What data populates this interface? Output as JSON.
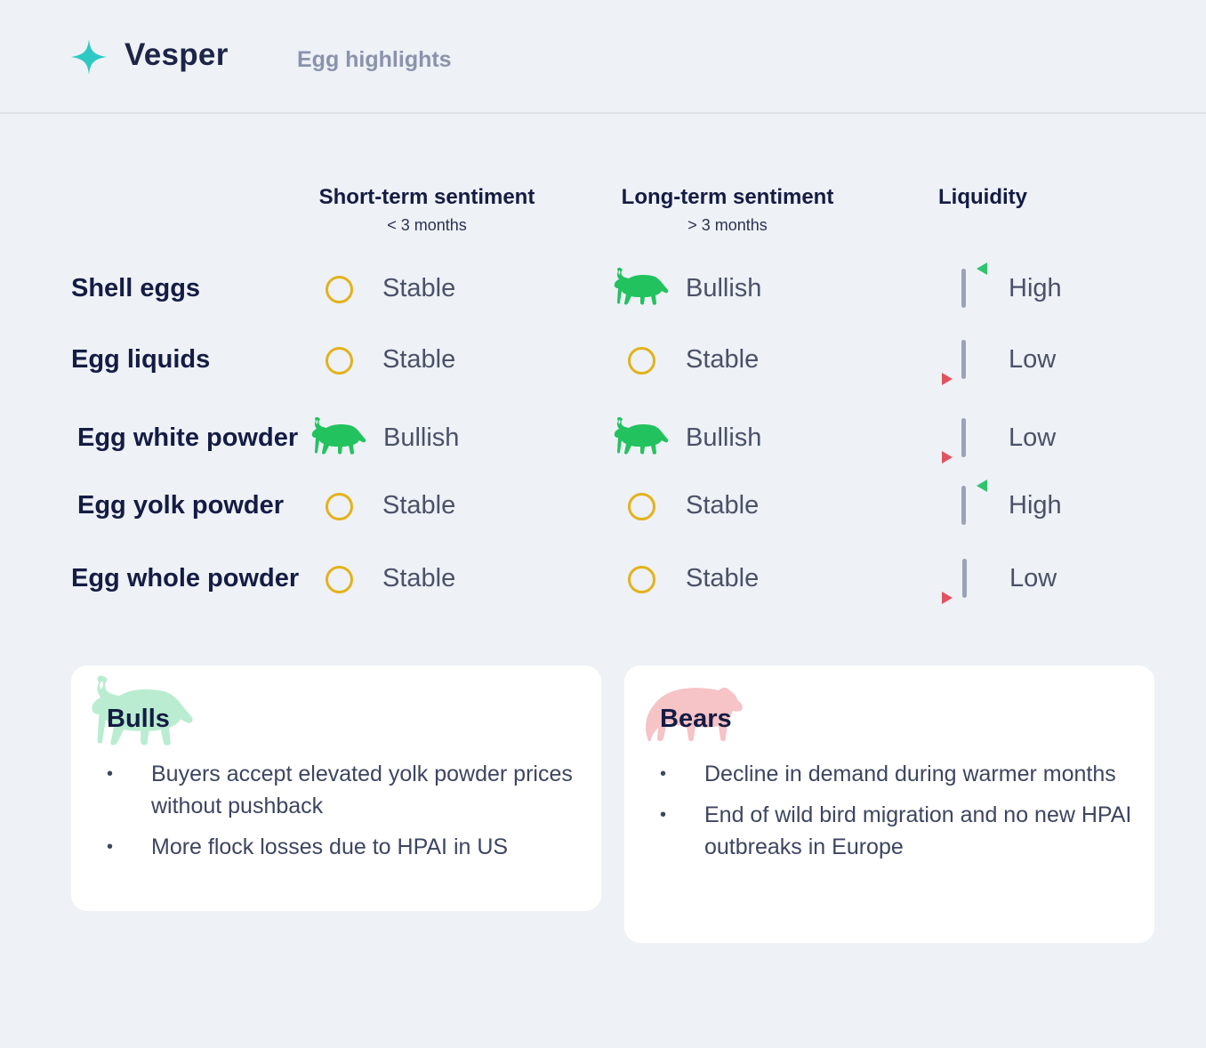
{
  "app": {
    "brand": "Vesper",
    "page_title": "Egg highlights"
  },
  "columns": {
    "short_term": {
      "title": "Short-term sentiment",
      "subtitle": "< 3 months"
    },
    "long_term": {
      "title": "Long-term sentiment",
      "subtitle": "> 3 months"
    },
    "liquidity": {
      "title": "Liquidity"
    }
  },
  "rows": [
    {
      "label": "Shell eggs",
      "short": "Stable",
      "short_icon": "stable-circle-icon",
      "long": "Bullish",
      "long_icon": "bull-icon",
      "liquidity": "High",
      "liquidity_icon": "arrow-up-green-icon"
    },
    {
      "label": "Egg liquids",
      "short": "Stable",
      "short_icon": "stable-circle-icon",
      "long": "Stable",
      "long_icon": "stable-circle-icon",
      "liquidity": "Low",
      "liquidity_icon": "arrow-down-red-icon"
    },
    {
      "label": "Egg white powder",
      "short": "Bullish",
      "short_icon": "bull-icon",
      "long": "Bullish",
      "long_icon": "bull-icon",
      "liquidity": "Low",
      "liquidity_icon": "arrow-down-red-icon"
    },
    {
      "label": "Egg yolk powder",
      "short": "Stable",
      "short_icon": "stable-circle-icon",
      "long": "Stable",
      "long_icon": "stable-circle-icon",
      "liquidity": "High",
      "liquidity_icon": "arrow-up-green-icon"
    },
    {
      "label": "Egg whole powder",
      "short": "Stable",
      "short_icon": "stable-circle-icon",
      "long": "Stable",
      "long_icon": "stable-circle-icon",
      "liquidity": "Low",
      "liquidity_icon": "arrow-down-red-icon"
    }
  ],
  "bulls": {
    "title": "Bulls",
    "items": [
      "Buyers accept  elevated yolk powder prices without pushback",
      "More flock losses due to HPAI in US"
    ]
  },
  "bears": {
    "title": "Bears",
    "items": [
      "Decline in demand during warmer months",
      "End of wild bird migration and no new HPAI outbreaks in Europe"
    ]
  },
  "colors": {
    "bull_green": "#22c35e",
    "stable_yellow": "#e3b21b",
    "high_arrow": "#2fc46e",
    "low_arrow": "#e0525f",
    "accent_teal": "#2ec9c4"
  }
}
